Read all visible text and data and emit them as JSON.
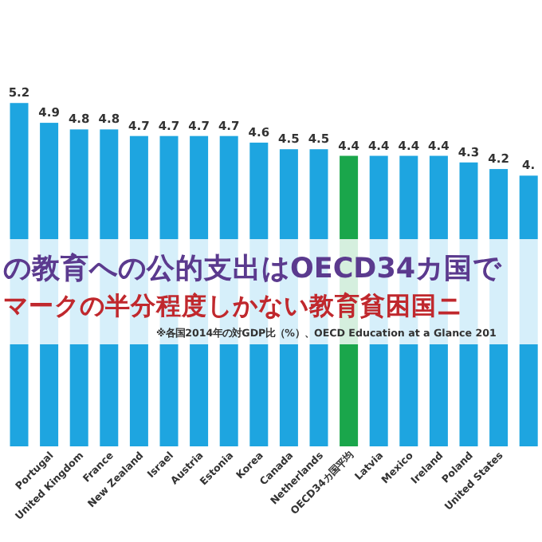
{
  "chart_data": {
    "type": "bar",
    "title": "の教育への公的支出はOECD34カ国で",
    "subtitle": "マークの半分程度しかない教育貧困国ニ",
    "annotations": [
      "※各国2014年の対GDP比（%）、OECD Education at a Glance 201"
    ],
    "categories": [
      null,
      "Portugal",
      "United Kingdom",
      "France",
      "New Zealand",
      "Israel",
      "Austria",
      "Estonia",
      "Korea",
      "Canada",
      "Netherlands",
      "OECD34カ国平均",
      "Latvia",
      "Mexico",
      "Ireland",
      "Poland",
      "United States",
      null
    ],
    "values": [
      5.2,
      4.9,
      4.8,
      4.8,
      4.7,
      4.7,
      4.7,
      4.7,
      4.6,
      4.5,
      4.5,
      4.4,
      4.4,
      4.4,
      4.4,
      4.3,
      4.2,
      4.1
    ],
    "value_labels": [
      "5.2",
      "4.9",
      "4.8",
      "4.8",
      "4.7",
      "4.7",
      "4.7",
      "4.7",
      "4.6",
      "4.5",
      "4.5",
      "4.4",
      "4.4",
      "4.4",
      "4.4",
      "4.3",
      "4.2",
      "4."
    ],
    "colors": [
      "#1ea5e0",
      "#1ea5e0",
      "#1ea5e0",
      "#1ea5e0",
      "#1ea5e0",
      "#1ea5e0",
      "#1ea5e0",
      "#1ea5e0",
      "#1ea5e0",
      "#1ea5e0",
      "#1ea5e0",
      "#1aa64b",
      "#1ea5e0",
      "#1ea5e0",
      "#1ea5e0",
      "#1ea5e0",
      "#1ea5e0",
      "#1ea5e0"
    ]
  }
}
